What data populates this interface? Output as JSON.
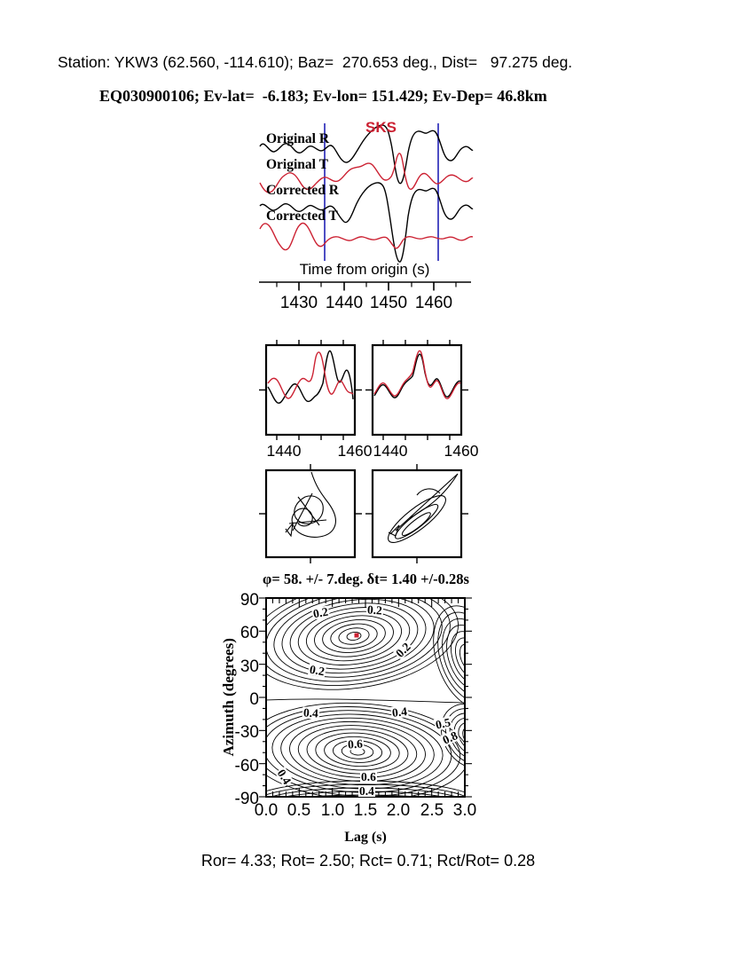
{
  "colors": {
    "red": "#cc2233",
    "blue": "#2121b5",
    "black": "#000000"
  },
  "header": {
    "station_line": "Station: YKW3 (62.560, -114.610); Baz=  270.653 deg., Dist=   97.275 deg.",
    "event_line": "EQ030900106; Ev-lat=  -6.183; Ev-lon= 151.429; Ev-Dep= 46.8km"
  },
  "waveform_panel": {
    "phase_label": "SKS",
    "trace_labels": [
      "Original R",
      "Original T",
      "Corrected R",
      "Corrected T"
    ],
    "axis_label": "Time from origin (s)",
    "ticks": [
      "1430",
      "1440",
      "1450",
      "1460"
    ]
  },
  "comparison_panel": {
    "left_ticks": [
      "1440",
      "1460"
    ],
    "right_ticks": [
      "1440",
      "1460"
    ]
  },
  "contour_panel": {
    "title": "φ= 58. +/- 7.deg. δt= 1.40 +/-0.28s",
    "ylabel": "Azimuth (degrees)",
    "xlabel": "Lag (s)",
    "yticks": [
      "90",
      "60",
      "30",
      "0",
      "-30",
      "-60",
      "-90"
    ],
    "xticks": [
      "0.0",
      "0.5",
      "1.0",
      "1.5",
      "2.0",
      "2.5",
      "3.0"
    ],
    "contour_labels": [
      {
        "text": "0.2"
      },
      {
        "text": "0.2"
      },
      {
        "text": "0.2"
      },
      {
        "text": "0.2"
      },
      {
        "text": "0.4"
      },
      {
        "text": "0.4"
      },
      {
        "text": "0.5"
      },
      {
        "text": "0.8"
      },
      {
        "text": "0.6"
      },
      {
        "text": "0.4"
      },
      {
        "text": "0.6"
      },
      {
        "text": "0.4"
      }
    ]
  },
  "footer": {
    "stats": "Ror= 4.33; Rot= 2.50; Rct= 0.71; Rct/Rot= 0.28"
  },
  "chart_data": [
    {
      "type": "line",
      "title": "SKS waveforms (radial=black, transverse=red)",
      "xlabel": "Time from origin (s)",
      "x_ticks": [
        1430,
        1440,
        1450,
        1460
      ],
      "x_range": [
        1425,
        1468
      ],
      "series": [
        {
          "name": "Original R",
          "color": "black"
        },
        {
          "name": "Original T",
          "color": "red"
        },
        {
          "name": "Corrected R",
          "color": "black"
        },
        {
          "name": "Corrected T",
          "color": "red"
        }
      ],
      "annotations": {
        "phase": "SKS",
        "analysis_window_s": [
          1436.5,
          1461.5
        ]
      }
    },
    {
      "type": "line",
      "title": "Fast/slow waveform comparison, original (left) and corrected (right)",
      "x_ticks": [
        1440,
        1460
      ],
      "x_range": [
        1437,
        1462
      ]
    },
    {
      "type": "scatter",
      "title": "Particle motion, original (left) and corrected (right)"
    },
    {
      "type": "heatmap",
      "title": "φ= 58. +/- 7.deg. δt= 1.40 +/-0.28s",
      "xlabel": "Lag (s)",
      "ylabel": "Azimuth (degrees)",
      "xlim": [
        0.0,
        3.0
      ],
      "ylim": [
        -90,
        90
      ],
      "x_ticks": [
        0.0,
        0.5,
        1.0,
        1.5,
        2.0,
        2.5,
        3.0
      ],
      "y_ticks": [
        90,
        60,
        30,
        0,
        -30,
        -60,
        -90
      ],
      "contour_levels_labeled": [
        0.2,
        0.4,
        0.5,
        0.6,
        0.8
      ],
      "best_fit": {
        "lag_s": 1.4,
        "azimuth_deg": 58
      },
      "uncertainty": {
        "lag_s": 0.28,
        "azimuth_deg": 7
      },
      "grid": false,
      "legend": "none"
    },
    {
      "type": "table",
      "title": "Energy ratios",
      "categories": [
        "Ror",
        "Rot",
        "Rct",
        "Rct/Rot"
      ],
      "values": [
        4.33,
        2.5,
        0.71,
        0.28
      ]
    }
  ]
}
